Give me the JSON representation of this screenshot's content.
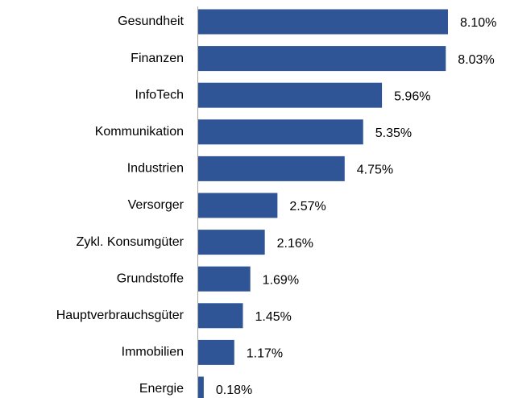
{
  "chart_data": {
    "type": "bar",
    "orientation": "horizontal",
    "color": "#2f5597",
    "categories": [
      "Gesundheit",
      "Finanzen",
      "InfoTech",
      "Kommunikation",
      "Industrien",
      "Versorger",
      "Zykl. Konsumgüter",
      "Grundstoffe",
      "Hauptverbrauchsgüter",
      "Immobilien",
      "Energie"
    ],
    "values": [
      8.1,
      8.03,
      5.96,
      5.35,
      4.75,
      2.57,
      2.16,
      1.69,
      1.45,
      1.17,
      0.18
    ],
    "value_labels": [
      "8.10%",
      "8.03%",
      "5.96%",
      "5.35%",
      "4.75%",
      "2.57%",
      "2.16%",
      "1.69%",
      "1.45%",
      "1.17%",
      "0.18%"
    ]
  }
}
